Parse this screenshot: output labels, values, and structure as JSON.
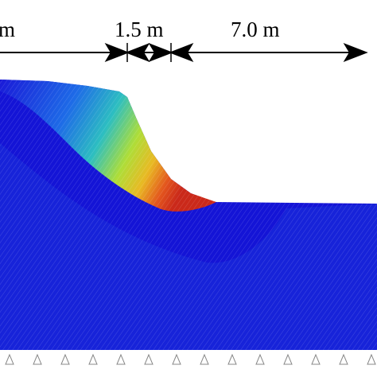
{
  "dimensions": [
    {
      "label": "m"
    },
    {
      "label": "1.5 m"
    },
    {
      "label": "7.0 m"
    }
  ]
}
